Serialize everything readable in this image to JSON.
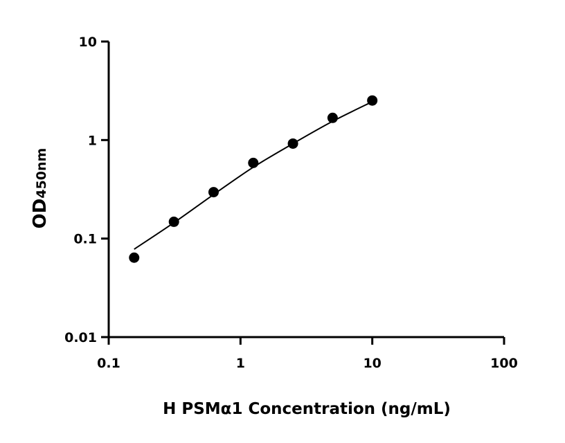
{
  "chart_data": {
    "type": "scatter",
    "title": "",
    "xlabel": "H PSMα1 Concentration (ng/mL)",
    "ylabel": "OD",
    "ylabel_subscript": "450nm",
    "x_scale": "log",
    "y_scale": "log",
    "xlim": [
      0.1,
      100
    ],
    "ylim": [
      0.01,
      10
    ],
    "x_ticks": [
      "0.1",
      "1",
      "10",
      "100"
    ],
    "y_ticks": [
      "0.01",
      "0.1",
      "1",
      "10"
    ],
    "grid": false,
    "points": {
      "x": [
        0.156,
        0.3125,
        0.625,
        1.25,
        2.5,
        5,
        10
      ],
      "y": [
        0.064,
        0.148,
        0.296,
        0.586,
        0.92,
        1.68,
        2.52
      ]
    },
    "fit_curve": {
      "x": [
        0.156,
        0.3125,
        0.625,
        1.25,
        2.5,
        5,
        10
      ],
      "y": [
        0.078,
        0.145,
        0.28,
        0.53,
        0.92,
        1.55,
        2.45
      ]
    },
    "colors": {
      "points": "#000000",
      "line": "#000000"
    }
  }
}
